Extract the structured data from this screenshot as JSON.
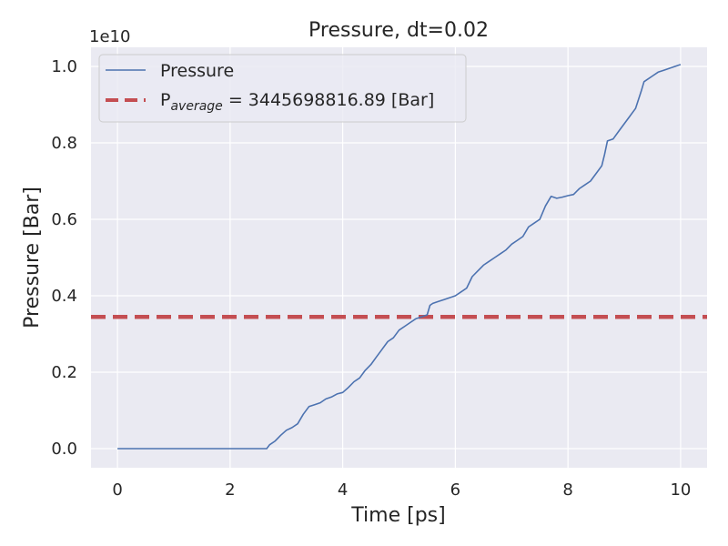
{
  "chart_data": {
    "type": "line",
    "title": "Pressure, dt=0.02",
    "xlabel": "Time [ps]",
    "ylabel": "Pressure [Bar]",
    "y_offset_label": "1e10",
    "xlim": [
      -0.47,
      10.47
    ],
    "ylim": [
      -0.05,
      1.05
    ],
    "y_scale_factor": 10000000000.0,
    "x_ticks": [
      0,
      2,
      4,
      6,
      8,
      10
    ],
    "y_ticks": [
      0.0,
      0.2,
      0.4,
      0.6,
      0.8,
      1.0
    ],
    "x_tick_labels": [
      "0",
      "2",
      "4",
      "6",
      "8",
      "10"
    ],
    "y_tick_labels": [
      "0.0",
      "0.2",
      "0.4",
      "0.6",
      "0.8",
      "1.0"
    ],
    "grid": true,
    "legend_position": "top-left",
    "series": [
      {
        "name": "Pressure",
        "color": "#4c72b0",
        "style": "solid",
        "x": [
          0,
          1,
          2,
          2.65,
          2.7,
          2.8,
          2.9,
          3.0,
          3.1,
          3.2,
          3.3,
          3.4,
          3.5,
          3.6,
          3.7,
          3.8,
          3.9,
          4.0,
          4.1,
          4.2,
          4.3,
          4.4,
          4.5,
          4.6,
          4.7,
          4.8,
          4.9,
          5.0,
          5.1,
          5.2,
          5.3,
          5.4,
          5.5,
          5.55,
          5.6,
          5.7,
          5.8,
          5.9,
          6.0,
          6.1,
          6.2,
          6.3,
          6.4,
          6.5,
          6.6,
          6.7,
          6.8,
          6.9,
          7.0,
          7.1,
          7.2,
          7.3,
          7.4,
          7.5,
          7.6,
          7.7,
          7.8,
          7.9,
          8.0,
          8.1,
          8.2,
          8.3,
          8.4,
          8.5,
          8.6,
          8.65,
          8.7,
          8.8,
          8.9,
          9.0,
          9.1,
          9.2,
          9.3,
          9.35,
          9.4,
          9.5,
          9.6,
          9.7,
          9.8,
          9.9,
          10.0
        ],
        "y": [
          0.0,
          0.0,
          0.0,
          0.0,
          0.01,
          0.02,
          0.035,
          0.048,
          0.055,
          0.065,
          0.09,
          0.11,
          0.115,
          0.12,
          0.13,
          0.135,
          0.143,
          0.147,
          0.16,
          0.175,
          0.185,
          0.205,
          0.22,
          0.24,
          0.26,
          0.28,
          0.29,
          0.31,
          0.32,
          0.33,
          0.34,
          0.345,
          0.35,
          0.375,
          0.38,
          0.385,
          0.39,
          0.395,
          0.4,
          0.41,
          0.42,
          0.45,
          0.465,
          0.48,
          0.49,
          0.5,
          0.51,
          0.52,
          0.535,
          0.545,
          0.555,
          0.58,
          0.59,
          0.6,
          0.635,
          0.66,
          0.655,
          0.658,
          0.662,
          0.665,
          0.68,
          0.69,
          0.7,
          0.72,
          0.74,
          0.77,
          0.805,
          0.81,
          0.83,
          0.85,
          0.87,
          0.89,
          0.935,
          0.96,
          0.965,
          0.975,
          0.985,
          0.99,
          0.995,
          1.0,
          1.005
        ]
      },
      {
        "name": "P_average",
        "legend_label_main": "P",
        "legend_label_sub": "average",
        "legend_label_rest": " = 3445698816.89 [Bar]",
        "color": "#c44e52",
        "style": "dashed",
        "constant_y": 0.344569881689
      }
    ]
  }
}
